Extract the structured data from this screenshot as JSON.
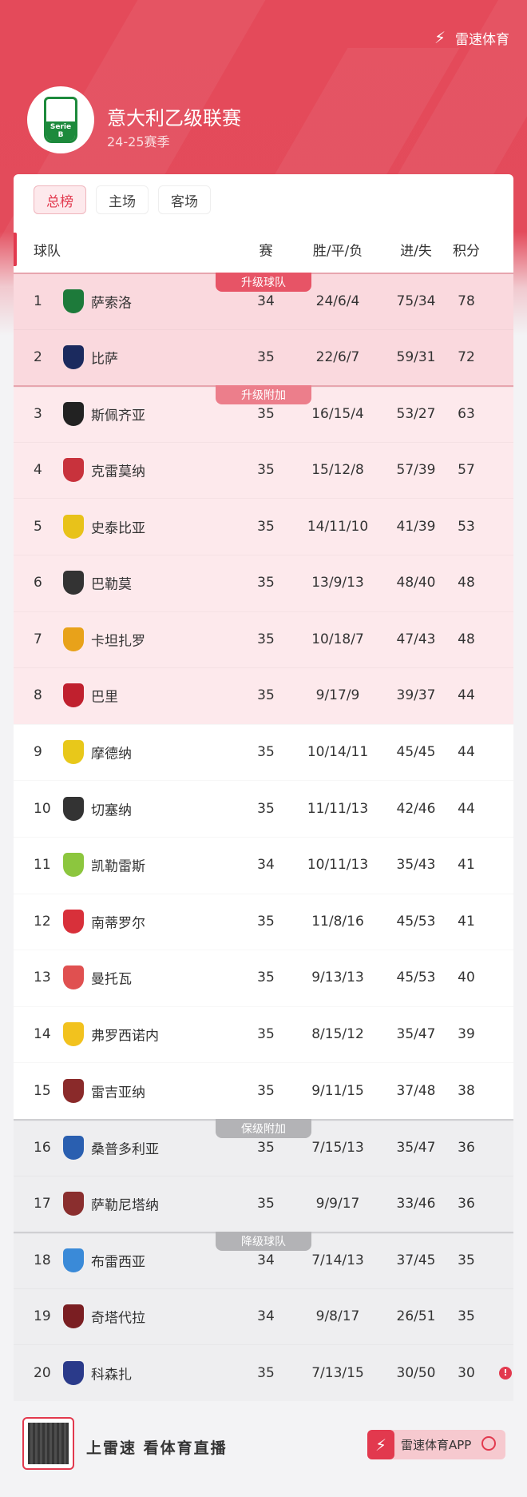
{
  "brand": {
    "name": "雷速体育",
    "icon": "lightning-icon"
  },
  "league": {
    "title": "意大利乙级联赛",
    "season": "24-25赛季",
    "logo_text": "Serie B"
  },
  "tabs": [
    {
      "label": "总榜",
      "active": true
    },
    {
      "label": "主场"
    },
    {
      "label": "客场"
    }
  ],
  "columns": {
    "team": "球队",
    "played": "赛",
    "wdl": "胜/平/负",
    "goals": "进/失",
    "points": "积分"
  },
  "zones": {
    "promotion": "升级球队",
    "playoff": "升级附加",
    "relegation_playoff": "保级附加",
    "relegation": "降级球队"
  },
  "rows": [
    {
      "rank": "1",
      "team": "萨索洛",
      "played": "34",
      "wdl": "24/6/4",
      "goals": "75/34",
      "points": "78",
      "color": "#1d7a3a"
    },
    {
      "rank": "2",
      "team": "比萨",
      "played": "35",
      "wdl": "22/6/7",
      "goals": "59/31",
      "points": "72",
      "color": "#1b2a5e"
    },
    {
      "rank": "3",
      "team": "斯佩齐亚",
      "played": "35",
      "wdl": "16/15/4",
      "goals": "53/27",
      "points": "63",
      "color": "#222222"
    },
    {
      "rank": "4",
      "team": "克雷莫纳",
      "played": "35",
      "wdl": "15/12/8",
      "goals": "57/39",
      "points": "57",
      "color": "#c8323c"
    },
    {
      "rank": "5",
      "team": "史泰比亚",
      "played": "35",
      "wdl": "14/11/10",
      "goals": "41/39",
      "points": "53",
      "color": "#e8c21a"
    },
    {
      "rank": "6",
      "team": "巴勒莫",
      "played": "35",
      "wdl": "13/9/13",
      "goals": "48/40",
      "points": "48",
      "color": "#333333"
    },
    {
      "rank": "7",
      "team": "卡坦扎罗",
      "played": "35",
      "wdl": "10/18/7",
      "goals": "47/43",
      "points": "48",
      "color": "#e8a21a"
    },
    {
      "rank": "8",
      "team": "巴里",
      "played": "35",
      "wdl": "9/17/9",
      "goals": "39/37",
      "points": "44",
      "color": "#c0202e"
    },
    {
      "rank": "9",
      "team": "摩德纳",
      "played": "35",
      "wdl": "10/14/11",
      "goals": "45/45",
      "points": "44",
      "color": "#e8c81a"
    },
    {
      "rank": "10",
      "team": "切塞纳",
      "played": "35",
      "wdl": "11/11/13",
      "goals": "42/46",
      "points": "44",
      "color": "#333333"
    },
    {
      "rank": "11",
      "team": "凯勒雷斯",
      "played": "34",
      "wdl": "10/11/13",
      "goals": "35/43",
      "points": "41",
      "color": "#8cc63e"
    },
    {
      "rank": "12",
      "team": "南蒂罗尔",
      "played": "35",
      "wdl": "11/8/16",
      "goals": "45/53",
      "points": "41",
      "color": "#d8303a"
    },
    {
      "rank": "13",
      "team": "曼托瓦",
      "played": "35",
      "wdl": "9/13/13",
      "goals": "45/53",
      "points": "40",
      "color": "#e05050"
    },
    {
      "rank": "14",
      "team": "弗罗西诺内",
      "played": "35",
      "wdl": "8/15/12",
      "goals": "35/47",
      "points": "39",
      "color": "#f2c21e"
    },
    {
      "rank": "15",
      "team": "雷吉亚纳",
      "played": "35",
      "wdl": "9/11/15",
      "goals": "37/48",
      "points": "38",
      "color": "#8a2a2a"
    },
    {
      "rank": "16",
      "team": "桑普多利亚",
      "played": "35",
      "wdl": "7/15/13",
      "goals": "35/47",
      "points": "36",
      "color": "#2a5fb0"
    },
    {
      "rank": "17",
      "team": "萨勒尼塔纳",
      "played": "35",
      "wdl": "9/9/17",
      "goals": "33/46",
      "points": "36",
      "color": "#8a2e2e"
    },
    {
      "rank": "18",
      "team": "布雷西亚",
      "played": "34",
      "wdl": "7/14/13",
      "goals": "37/45",
      "points": "35",
      "color": "#3a8ad8"
    },
    {
      "rank": "19",
      "team": "奇塔代拉",
      "played": "34",
      "wdl": "9/8/17",
      "goals": "26/51",
      "points": "35",
      "color": "#7a1e22"
    },
    {
      "rank": "20",
      "team": "科森扎",
      "played": "35",
      "wdl": "7/13/15",
      "goals": "30/50",
      "points": "30",
      "color": "#2a3a8a",
      "info": true
    }
  ],
  "footer": {
    "slogan": "上雷速 看体育直播",
    "app_button": "雷速体育APP"
  },
  "colors": {
    "accent": "#e2394e",
    "header_bg": "#e44a5a"
  }
}
